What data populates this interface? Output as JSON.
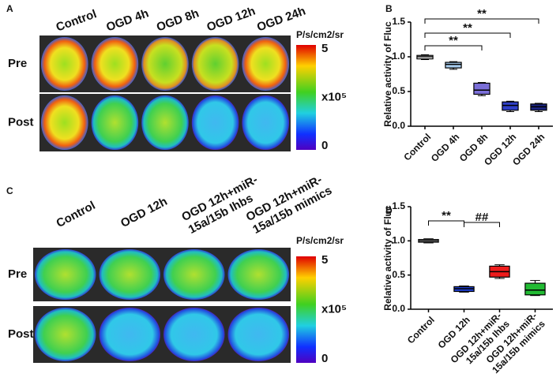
{
  "panels": {
    "a": {
      "label": "A",
      "columns": [
        "Control",
        "OGD 4h",
        "OGD 8h",
        "OGD 12h",
        "OGD 24h"
      ],
      "rows": [
        "Pre",
        "Post"
      ],
      "colorbar": {
        "unit": "P/s/cm2/sr",
        "max": "5",
        "scale": "x10⁵",
        "min": "0"
      }
    },
    "c": {
      "label": "C",
      "columns": [
        "Control",
        "OGD 12h",
        "OGD 12h+miR-\n15a/15b Ihbs",
        "OGD 12h+miR-\n15a/15b mimics"
      ],
      "rows": [
        "Pre",
        "Post"
      ],
      "colorbar": {
        "unit": "P/s/cm2/sr",
        "max": "5",
        "scale": "x10⁵",
        "min": "0"
      }
    }
  },
  "chart_data": [
    {
      "type": "box",
      "label": "B",
      "ylabel": "Relative activity of Fluc",
      "categories": [
        "Control",
        "OGD 4h",
        "OGD 8h",
        "OGD 12h",
        "OGD 24h"
      ],
      "boxes": [
        {
          "min": 0.96,
          "q1": 0.97,
          "median": 1.0,
          "q3": 1.02,
          "max": 1.03
        },
        {
          "min": 0.82,
          "q1": 0.84,
          "median": 0.89,
          "q3": 0.92,
          "max": 0.93
        },
        {
          "min": 0.44,
          "q1": 0.46,
          "median": 0.52,
          "q3": 0.62,
          "max": 0.63
        },
        {
          "min": 0.21,
          "q1": 0.23,
          "median": 0.3,
          "q3": 0.35,
          "max": 0.36
        },
        {
          "min": 0.21,
          "q1": 0.23,
          "median": 0.28,
          "q3": 0.32,
          "max": 0.33
        }
      ],
      "colors": [
        "#ffffff",
        "#a8cdef",
        "#7b6fd8",
        "#2f3fc6",
        "#1b2580"
      ],
      "annotations": [
        "**",
        "**",
        "**"
      ],
      "ylim": [
        0,
        1.5
      ],
      "yticks": [
        {
          "value": 0,
          "label": "0.0"
        },
        {
          "value": 0.5,
          "label": "0.5"
        },
        {
          "value": 1,
          "label": "1.0"
        },
        {
          "value": 1.5,
          "label": "1.5"
        }
      ]
    },
    {
      "type": "box",
      "label": "D",
      "ylabel": "Relative activity of Fluc",
      "categories": [
        "Control",
        "OGD 12h",
        "OGD 12h+miR-\n15a/15b Ihbs",
        "OGD 12h+miR-\n15a/15b mimics"
      ],
      "boxes": [
        {
          "min": 0.97,
          "q1": 0.98,
          "median": 1.0,
          "q3": 1.02,
          "max": 1.03
        },
        {
          "min": 0.25,
          "q1": 0.26,
          "median": 0.3,
          "q3": 0.33,
          "max": 0.34
        },
        {
          "min": 0.45,
          "q1": 0.47,
          "median": 0.55,
          "q3": 0.63,
          "max": 0.65
        },
        {
          "min": 0.2,
          "q1": 0.21,
          "median": 0.28,
          "q3": 0.38,
          "max": 0.42
        }
      ],
      "colors": [
        "#ffffff",
        "#1f3fd0",
        "#ee1c1c",
        "#22bb33"
      ],
      "annotations": [
        "**",
        "##"
      ],
      "ylim": [
        0,
        1.5
      ],
      "yticks": [
        {
          "value": 0,
          "label": "0.0"
        },
        {
          "value": 0.5,
          "label": "0.5"
        },
        {
          "value": 1,
          "label": "1.0"
        },
        {
          "value": 1.5,
          "label": "1.5"
        }
      ]
    }
  ]
}
